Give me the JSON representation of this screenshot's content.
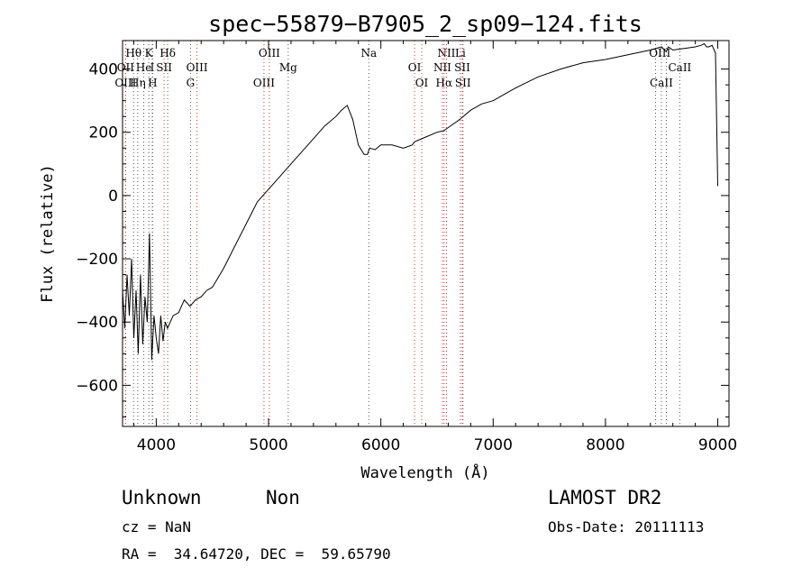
{
  "chart_data": {
    "type": "line",
    "title": "spec−55879−B7905_2_sp09−124.fits",
    "xlabel": "Wavelength (Å)",
    "ylabel": "Flux (relative)",
    "xlim": [
      3700,
      9100
    ],
    "ylim": [
      -730,
      490
    ],
    "xticks": [
      4000,
      5000,
      6000,
      7000,
      8000,
      9000
    ],
    "xtick_labels": [
      "4000",
      "5000",
      "6000",
      "7000",
      "8000",
      "9000"
    ],
    "yticks": [
      -600,
      -400,
      -200,
      0,
      200,
      400
    ],
    "ytick_labels": [
      "−600",
      "−400",
      "−200",
      "0",
      "200",
      "400"
    ],
    "grid": false,
    "series": [
      {
        "color": "#000000",
        "x": [
          3700,
          3720,
          3740,
          3760,
          3780,
          3800,
          3820,
          3840,
          3860,
          3880,
          3900,
          3920,
          3940,
          3960,
          3980,
          4000,
          4020,
          4040,
          4060,
          4080,
          4100,
          4150,
          4200,
          4250,
          4300,
          4350,
          4400,
          4450,
          4500,
          4600,
          4700,
          4800,
          4900,
          5000,
          5100,
          5200,
          5300,
          5400,
          5500,
          5600,
          5650,
          5700,
          5750,
          5800,
          5850,
          5880,
          5900,
          5950,
          6000,
          6100,
          6200,
          6280,
          6300,
          6400,
          6500,
          6560,
          6600,
          6700,
          6800,
          6900,
          7000,
          7100,
          7200,
          7400,
          7600,
          7800,
          8000,
          8200,
          8400,
          8500,
          8540,
          8560,
          8600,
          8700,
          8800,
          8850,
          8880,
          8900,
          8920,
          8950,
          8980,
          9000
        ],
        "y": [
          -300,
          -420,
          -250,
          -380,
          -200,
          -450,
          -300,
          -500,
          -250,
          -470,
          -320,
          -400,
          -120,
          -520,
          -380,
          -450,
          -500,
          -380,
          -460,
          -400,
          -420,
          -380,
          -370,
          -330,
          -350,
          -330,
          -320,
          -300,
          -290,
          -230,
          -160,
          -90,
          -20,
          20,
          60,
          100,
          140,
          180,
          220,
          250,
          270,
          285,
          240,
          160,
          130,
          130,
          150,
          145,
          160,
          160,
          150,
          160,
          170,
          185,
          200,
          205,
          215,
          240,
          270,
          290,
          300,
          320,
          340,
          375,
          400,
          420,
          430,
          445,
          460,
          470,
          455,
          470,
          460,
          465,
          470,
          475,
          480,
          470,
          470,
          475,
          450,
          30
        ]
      }
    ],
    "line_markers": [
      {
        "label": "Hθ",
        "x": 3798,
        "row": 1,
        "color": "#555555"
      },
      {
        "label": "K",
        "x": 3934,
        "row": 1,
        "color": "#555555"
      },
      {
        "label": "Hδ",
        "x": 4102,
        "row": 1,
        "color": "#555555"
      },
      {
        "label": "OIII",
        "x": 5007,
        "row": 1,
        "color": "#cc3333"
      },
      {
        "label": "Na",
        "x": 5893,
        "row": 1,
        "color": "#555555"
      },
      {
        "label": "NII",
        "x": 6584,
        "row": 1,
        "color": "#cc3333"
      },
      {
        "label": "Li",
        "x": 6708,
        "row": 1,
        "color": "#555555"
      },
      {
        "label": "OI",
        "x": 8446,
        "row": 1,
        "color": "#555555"
      },
      {
        "label": "II",
        "x": 8542,
        "row": 1,
        "color": "#555555"
      },
      {
        "label": "OII",
        "x": 3727,
        "row": 2,
        "color": "#cc3333"
      },
      {
        "label": "He",
        "x": 3889,
        "row": 2,
        "color": "#555555"
      },
      {
        "label": "I",
        "x": 3965,
        "row": 2,
        "color": "#555555"
      },
      {
        "label": "SII",
        "x": 4070,
        "row": 2,
        "color": "#cc3333"
      },
      {
        "label": "OIII",
        "x": 4363,
        "row": 2,
        "color": "#cc3333"
      },
      {
        "label": "Mg",
        "x": 5175,
        "row": 2,
        "color": "#555555"
      },
      {
        "label": "OI",
        "x": 6300,
        "row": 2,
        "color": "#cc3333"
      },
      {
        "label": "NII",
        "x": 6548,
        "row": 2,
        "color": "#cc3333"
      },
      {
        "label": "SII",
        "x": 6725,
        "row": 2,
        "color": "#cc3333"
      },
      {
        "label": "CaII",
        "x": 8662,
        "row": 2,
        "color": "#555555"
      },
      {
        "label": "OIII",
        "x": 3727,
        "row": 3,
        "color": "#cc3333"
      },
      {
        "label": "Hη",
        "x": 3835,
        "row": 3,
        "color": "#555555"
      },
      {
        "label": "H",
        "x": 3968,
        "row": 3,
        "color": "#555555"
      },
      {
        "label": "G",
        "x": 4305,
        "row": 3,
        "color": "#555555"
      },
      {
        "label": "OIII",
        "x": 4959,
        "row": 3,
        "color": "#cc3333"
      },
      {
        "label": "OI",
        "x": 6364,
        "row": 3,
        "color": "#cc3333"
      },
      {
        "label": "Hα",
        "x": 6563,
        "row": 3,
        "color": "#cc3333"
      },
      {
        "label": "SII",
        "x": 6731,
        "row": 3,
        "color": "#cc3333"
      },
      {
        "label": "CaII",
        "x": 8498,
        "row": 3,
        "color": "#555555"
      }
    ]
  },
  "info": {
    "class": "Unknown",
    "subclass": "Non",
    "survey": "LAMOST DR2",
    "cz": "cz = NaN",
    "obs_date": "Obs-Date: 20111113",
    "radec": "RA =  34.64720, DEC =  59.65790"
  }
}
